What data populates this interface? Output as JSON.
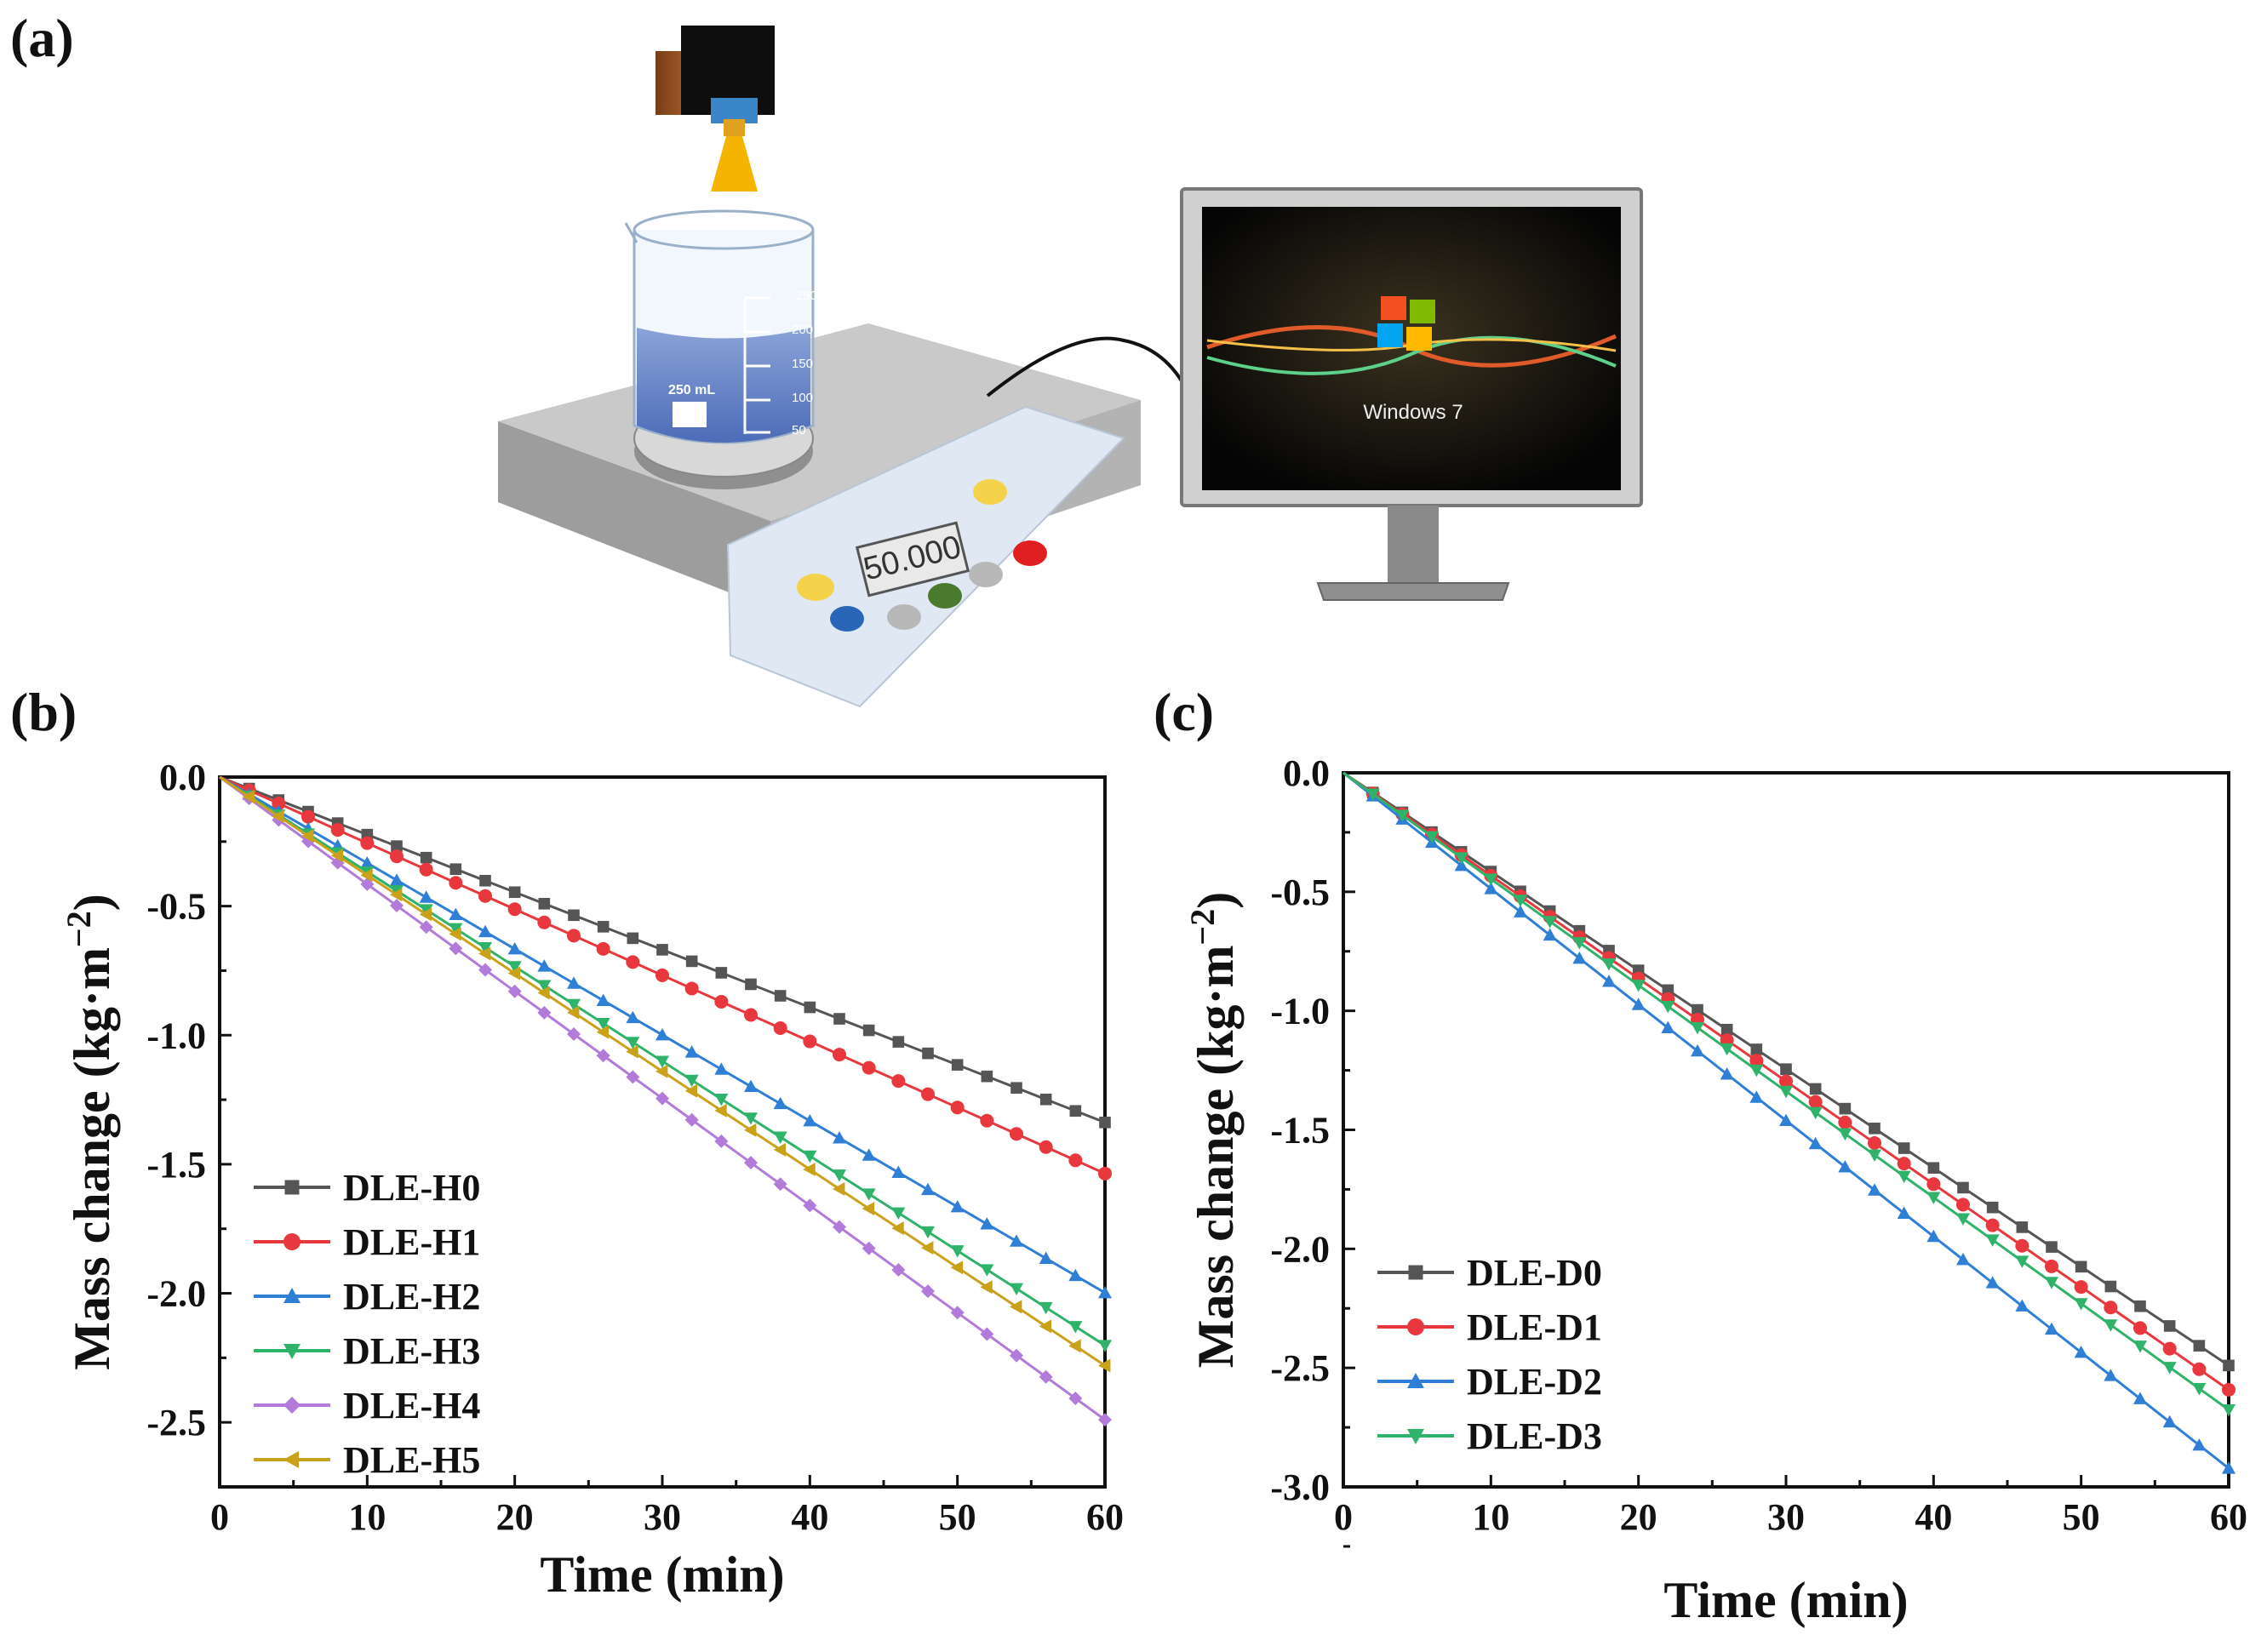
{
  "panels": {
    "a": "(a)",
    "b": "(b)",
    "c": "(c)"
  },
  "illustration": {
    "beaker_volume_label": "250 mL",
    "beaker_graduations": [
      "250",
      "200",
      "150",
      "100",
      "50"
    ],
    "balance_display": "50.000",
    "monitor_text": "Windows 7"
  },
  "chart_data": [
    {
      "type": "line",
      "panel": "b",
      "xlabel": "Time (min)",
      "ylabel": "Mass change (kg·m",
      "ylabel_sup": "−2",
      "ylabel_close": ")",
      "xlim": [
        0,
        60
      ],
      "ylim": [
        -2.75,
        0
      ],
      "xticks": [
        "0",
        "10",
        "20",
        "30",
        "40",
        "50",
        "60"
      ],
      "yticks": [
        "0.0",
        "-0.5",
        "-1.0",
        "-1.5",
        "-2.0",
        "-2.5"
      ],
      "ytick_values": [
        0,
        -0.5,
        -1.0,
        -1.5,
        -2.0,
        -2.5
      ],
      "legend_position": "bottom-left",
      "x": [
        0,
        2,
        4,
        6,
        8,
        10,
        12,
        14,
        16,
        18,
        20,
        22,
        24,
        26,
        28,
        30,
        32,
        34,
        36,
        38,
        40,
        42,
        44,
        46,
        48,
        50,
        52,
        54,
        56,
        58,
        60
      ],
      "series": [
        {
          "name": "DLE-H0",
          "color": "#555555",
          "marker": "square",
          "slope": -0.0223
        },
        {
          "name": "DLE-H1",
          "color": "#e8383d",
          "marker": "circle",
          "slope": -0.0256
        },
        {
          "name": "DLE-H2",
          "color": "#2f7fd6",
          "marker": "triangle-up",
          "slope": -0.0333
        },
        {
          "name": "DLE-H3",
          "color": "#2fb36a",
          "marker": "triangle-down",
          "slope": -0.0367
        },
        {
          "name": "DLE-H4",
          "color": "#b27ad9",
          "marker": "diamond",
          "slope": -0.0415
        },
        {
          "name": "DLE-H5",
          "color": "#c9a21a",
          "marker": "triangle-left",
          "slope": -0.038
        }
      ]
    },
    {
      "type": "line",
      "panel": "c",
      "xlabel": "Time (min)",
      "ylabel": "Mass change (kg·m",
      "ylabel_sup": "−2",
      "ylabel_close": ")",
      "xlim": [
        0,
        60
      ],
      "ylim": [
        -3.0,
        0
      ],
      "xticks": [
        "0",
        "10",
        "20",
        "30",
        "40",
        "50",
        "60"
      ],
      "yticks": [
        "0.0",
        "-0.5",
        "-1.0",
        "-1.5",
        "-2.0",
        "-2.5",
        "-3.0"
      ],
      "ytick_values": [
        0,
        -0.5,
        -1.0,
        -1.5,
        -2.0,
        -2.5,
        -3.0
      ],
      "legend_position": "bottom-left",
      "x": [
        0,
        2,
        4,
        6,
        8,
        10,
        12,
        14,
        16,
        18,
        20,
        22,
        24,
        26,
        28,
        30,
        32,
        34,
        36,
        38,
        40,
        42,
        44,
        46,
        48,
        50,
        52,
        54,
        56,
        58,
        60
      ],
      "series": [
        {
          "name": "DLE-D0",
          "color": "#555555",
          "marker": "square",
          "slope": -0.0415
        },
        {
          "name": "DLE-D1",
          "color": "#e8383d",
          "marker": "circle",
          "slope": -0.0432
        },
        {
          "name": "DLE-D2",
          "color": "#2f7fd6",
          "marker": "triangle-up",
          "slope": -0.0487
        },
        {
          "name": "DLE-D3",
          "color": "#2fb36a",
          "marker": "triangle-down",
          "slope": -0.0446
        }
      ]
    }
  ]
}
